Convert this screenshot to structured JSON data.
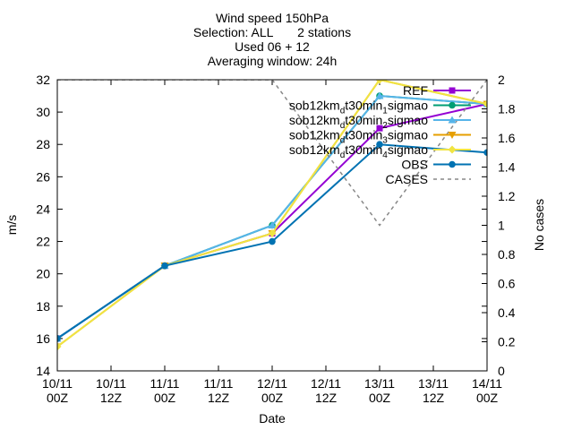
{
  "chart_data": {
    "type": "line",
    "title": [
      "Wind speed 150hPa",
      "Selection: ALL       2 stations",
      "Used 06 + 12",
      "Averaging window: 24h"
    ],
    "xlabel": "Date",
    "ylabel": "m/s",
    "y2label": "No cases",
    "x": [
      0,
      1,
      2,
      3,
      4,
      5,
      6,
      7,
      8
    ],
    "xticks": [
      {
        "top": "10/11",
        "bottom": "00Z"
      },
      {
        "top": "10/11",
        "bottom": "12Z"
      },
      {
        "top": "11/11",
        "bottom": "00Z"
      },
      {
        "top": "11/11",
        "bottom": "12Z"
      },
      {
        "top": "12/11",
        "bottom": "00Z"
      },
      {
        "top": "12/11",
        "bottom": "12Z"
      },
      {
        "top": "13/11",
        "bottom": "00Z"
      },
      {
        "top": "13/11",
        "bottom": "12Z"
      },
      {
        "top": "14/11",
        "bottom": "00Z"
      }
    ],
    "ylim": [
      14,
      32
    ],
    "yticks": [
      14,
      16,
      18,
      20,
      22,
      24,
      26,
      28,
      30,
      32
    ],
    "y2lim": [
      0,
      2
    ],
    "y2ticks": [
      "0",
      "0.2",
      "0.4",
      "0.6",
      "0.8",
      "1",
      "1.2",
      "1.4",
      "1.6",
      "1.8",
      "2"
    ],
    "grid": false,
    "legend_position": "top-right",
    "series": [
      {
        "name": "REF",
        "color": "#9400d3",
        "marker": "square",
        "x": [
          0,
          2,
          4,
          6,
          8
        ],
        "values": [
          16.0,
          20.5,
          22.5,
          29.0,
          30.5
        ]
      },
      {
        "name": "sob12km_d t30min_1 sigmao",
        "label_main": "sob12km",
        "label_sub": "d",
        "label_mid": "t30min",
        "label_idx": "1",
        "label_end": "sigmao",
        "color": "#009e73",
        "marker": "circle",
        "x": [
          0,
          2,
          4,
          6,
          8
        ],
        "values": [
          16.0,
          20.5,
          23.0,
          31.0,
          30.5
        ]
      },
      {
        "name": "sob12km_d t30min_2 sigmao",
        "label_main": "sob12km",
        "label_sub": "d",
        "label_mid": "t30min",
        "label_idx": "2",
        "label_end": "sigmao",
        "color": "#56b4e9",
        "marker": "triangle",
        "x": [
          0,
          2,
          4,
          6,
          8
        ],
        "values": [
          16.0,
          20.5,
          23.0,
          31.0,
          30.5
        ]
      },
      {
        "name": "sob12km_d t30min_3 sigmao",
        "label_main": "sob12km",
        "label_sub": "d",
        "label_mid": "t30min",
        "label_idx": "3",
        "label_end": "sigmao",
        "color": "#e69f00",
        "marker": "triangle-down",
        "x": [
          0,
          2,
          4,
          6,
          8
        ],
        "values": [
          15.5,
          20.5,
          22.5,
          32.0,
          30.5
        ]
      },
      {
        "name": "sob12km_d t30min_4 sigmao",
        "label_main": "sob12km",
        "label_sub": "d",
        "label_mid": "t30min",
        "label_idx": "4",
        "label_end": "sigmao",
        "color": "#f0e442",
        "marker": "diamond",
        "x": [
          0,
          2,
          4,
          6,
          8
        ],
        "values": [
          15.5,
          20.5,
          22.5,
          32.0,
          30.5
        ]
      },
      {
        "name": "OBS",
        "color": "#0072b2",
        "marker": "circle",
        "x": [
          0,
          2,
          4,
          6,
          8
        ],
        "values": [
          16.0,
          20.5,
          22.0,
          28.0,
          27.5
        ]
      },
      {
        "name": "CASES",
        "color": "#888888",
        "dashed": true,
        "axis": "y2",
        "x": [
          0,
          2,
          4,
          6,
          8
        ],
        "values": [
          2,
          2,
          2,
          1,
          2
        ]
      }
    ]
  }
}
